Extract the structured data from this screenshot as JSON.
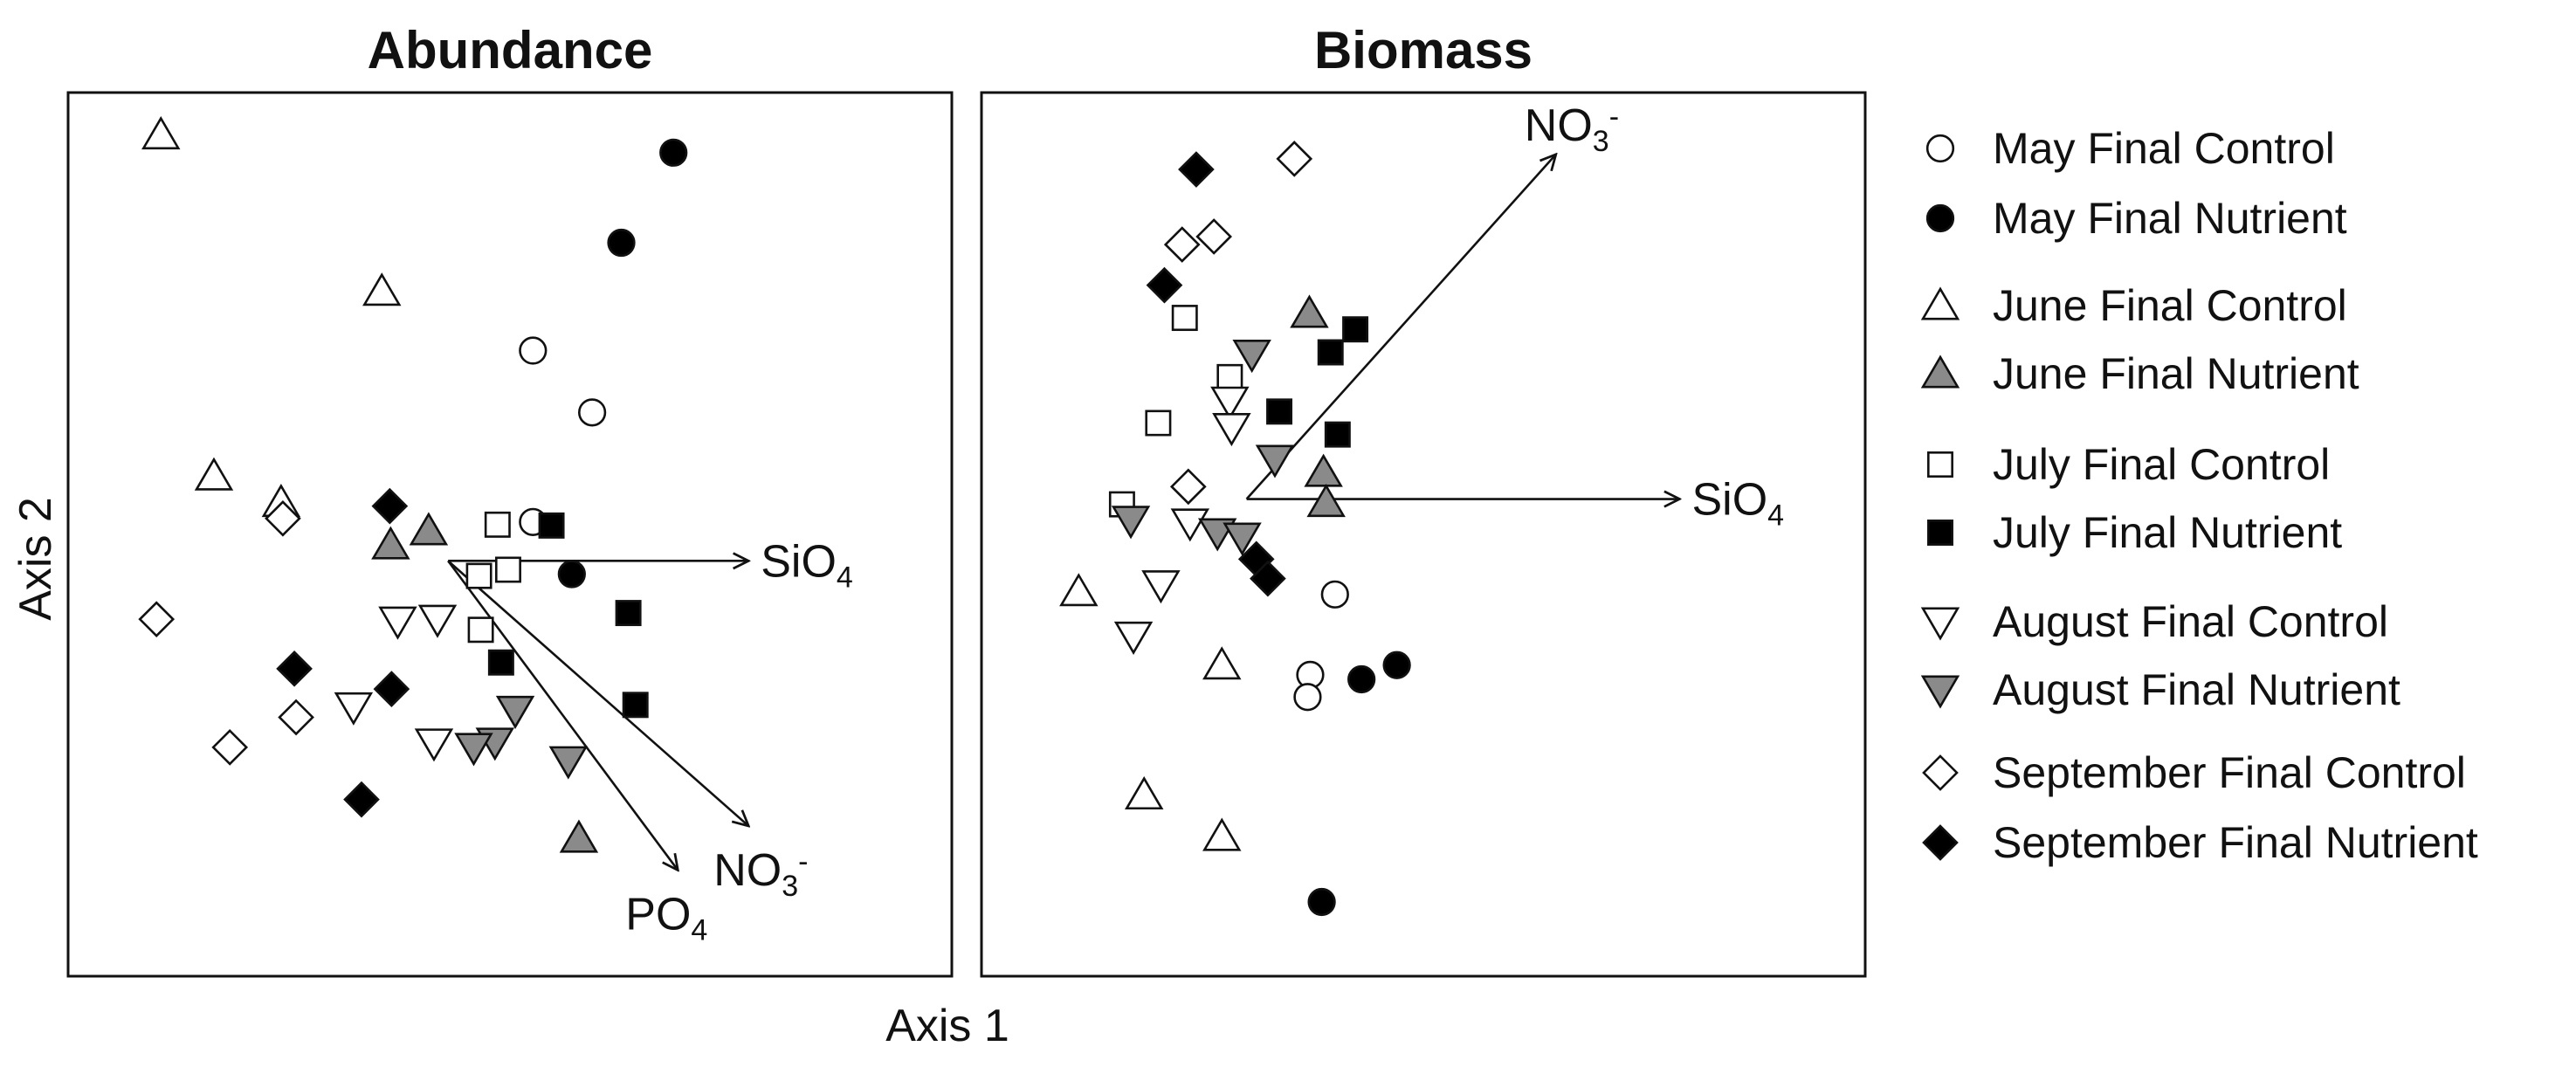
{
  "chart_data": {
    "type": "scatter",
    "xlabel": "Axis 1",
    "ylabel": "Axis 2",
    "legend_position": "right",
    "legend": [
      {
        "label": "May Final Control",
        "marker": "circle",
        "fill": "#ffffff"
      },
      {
        "label": "May Final Nutrient",
        "marker": "circle",
        "fill": "#000000"
      },
      {
        "label": "June Final Control",
        "marker": "triangle-up",
        "fill": "#ffffff"
      },
      {
        "label": "June Final Nutrient",
        "marker": "triangle-up",
        "fill": "#8a8a8a"
      },
      {
        "label": "July Final Control",
        "marker": "square",
        "fill": "#ffffff"
      },
      {
        "label": "July Final Nutrient",
        "marker": "square",
        "fill": "#000000"
      },
      {
        "label": "August Final Control",
        "marker": "triangle-down",
        "fill": "#ffffff"
      },
      {
        "label": "August Final Nutrient",
        "marker": "triangle-down",
        "fill": "#8a8a8a"
      },
      {
        "label": "September Final Control",
        "marker": "diamond",
        "fill": "#ffffff"
      },
      {
        "label": "September Final Nutrient",
        "marker": "diamond",
        "fill": "#000000"
      }
    ],
    "panels": [
      {
        "title": "Abundance",
        "xlim": [
          0,
          100
        ],
        "ylim": [
          0,
          100
        ],
        "origin": [
          43,
          47
        ],
        "vectors": [
          {
            "name": "SiO",
            "sub": "4",
            "sup": "",
            "end": [
              77,
              47
            ],
            "label_pos": "right"
          },
          {
            "name": "NO",
            "sub": "3",
            "sup": "-",
            "end": [
              77,
              17
            ],
            "label_pos": "below-right"
          },
          {
            "name": "PO",
            "sub": "4",
            "sup": "",
            "end": [
              69,
              12
            ],
            "label_pos": "below"
          }
        ],
        "series": [
          {
            "name": "May Final Control",
            "points": [
              [
                52.6,
                70.8
              ],
              [
                59.3,
                63.8
              ],
              [
                52.6,
                51.4
              ]
            ]
          },
          {
            "name": "May Final Nutrient",
            "points": [
              [
                68.5,
                93.2
              ],
              [
                62.6,
                83.0
              ],
              [
                57.0,
                45.5
              ]
            ]
          },
          {
            "name": "June Final Control",
            "points": [
              [
                10.5,
                95.2
              ],
              [
                35.5,
                77.5
              ],
              [
                16.5,
                56.6
              ],
              [
                24.1,
                53.6
              ]
            ]
          },
          {
            "name": "June Final Nutrient",
            "points": [
              [
                36.5,
                48.8
              ],
              [
                40.8,
                50.4
              ],
              [
                57.8,
                15.6
              ]
            ]
          },
          {
            "name": "July Final Control",
            "points": [
              [
                48.6,
                51.1
              ],
              [
                49.8,
                46.0
              ],
              [
                46.5,
                45.3
              ],
              [
                46.7,
                39.2
              ]
            ]
          },
          {
            "name": "July Final Nutrient",
            "points": [
              [
                54.7,
                51.0
              ],
              [
                63.4,
                41.1
              ],
              [
                64.2,
                30.7
              ],
              [
                49.0,
                35.5
              ]
            ]
          },
          {
            "name": "August Final Control",
            "points": [
              [
                37.3,
                40.2
              ],
              [
                41.8,
                40.4
              ],
              [
                32.3,
                30.5
              ],
              [
                41.4,
                26.4
              ]
            ]
          },
          {
            "name": "August Final Nutrient",
            "points": [
              [
                50.6,
                30.1
              ],
              [
                48.3,
                26.5
              ],
              [
                45.9,
                25.9
              ],
              [
                56.6,
                24.4
              ]
            ]
          },
          {
            "name": "September Final Control",
            "points": [
              [
                24.3,
                51.8
              ],
              [
                10.0,
                40.4
              ],
              [
                25.8,
                29.3
              ],
              [
                18.3,
                25.9
              ]
            ]
          },
          {
            "name": "September Final Nutrient",
            "points": [
              [
                36.4,
                53.2
              ],
              [
                25.6,
                34.8
              ],
              [
                36.6,
                32.5
              ],
              [
                33.2,
                20.0
              ]
            ]
          }
        ]
      },
      {
        "title": "Biomass",
        "xlim": [
          0,
          100
        ],
        "ylim": [
          0,
          100
        ],
        "origin": [
          30,
          54
        ],
        "vectors": [
          {
            "name": "NO",
            "sub": "3",
            "sup": "-",
            "end": [
              65,
              93
            ],
            "label_pos": "above"
          },
          {
            "name": "SiO",
            "sub": "4",
            "sup": "",
            "end": [
              79,
              54
            ],
            "label_pos": "right"
          }
        ],
        "series": [
          {
            "name": "May Final Control",
            "points": [
              [
                40.0,
                43.2
              ],
              [
                37.2,
                34.1
              ],
              [
                36.9,
                31.6
              ]
            ]
          },
          {
            "name": "May Final Nutrient",
            "points": [
              [
                43.0,
                33.6
              ],
              [
                47.0,
                35.2
              ],
              [
                38.5,
                8.4
              ]
            ]
          },
          {
            "name": "June Final Control",
            "points": [
              [
                11.0,
                43.5
              ],
              [
                27.2,
                35.2
              ],
              [
                18.4,
                20.5
              ],
              [
                27.2,
                15.8
              ]
            ]
          },
          {
            "name": "June Final Nutrient",
            "points": [
              [
                37.1,
                75.0
              ],
              [
                38.7,
                57.0
              ],
              [
                39.0,
                53.6
              ]
            ]
          },
          {
            "name": "July Final Control",
            "points": [
              [
                23.0,
                74.5
              ],
              [
                28.1,
                67.8
              ],
              [
                20.0,
                62.6
              ],
              [
                15.9,
                53.4
              ]
            ]
          },
          {
            "name": "July Final Nutrient",
            "points": [
              [
                42.3,
                73.2
              ],
              [
                39.5,
                70.6
              ],
              [
                33.7,
                63.9
              ],
              [
                40.3,
                61.3
              ]
            ]
          },
          {
            "name": "August Final Control",
            "points": [
              [
                28.1,
                65.1
              ],
              [
                28.3,
                62.1
              ],
              [
                23.6,
                51.3
              ],
              [
                20.3,
                44.3
              ],
              [
                17.2,
                38.5
              ]
            ]
          },
          {
            "name": "August Final Nutrient",
            "points": [
              [
                30.6,
                70.4
              ],
              [
                33.2,
                58.5
              ],
              [
                16.9,
                51.6
              ],
              [
                26.7,
                50.2
              ],
              [
                29.5,
                49.7
              ]
            ]
          },
          {
            "name": "September Final Control",
            "points": [
              [
                35.4,
                92.5
              ],
              [
                22.7,
                82.8
              ],
              [
                26.3,
                83.7
              ],
              [
                23.4,
                55.4
              ]
            ]
          },
          {
            "name": "September Final Nutrient",
            "points": [
              [
                24.3,
                91.3
              ],
              [
                20.7,
                78.2
              ],
              [
                31.1,
                47.2
              ],
              [
                32.4,
                45.0
              ]
            ]
          }
        ]
      }
    ]
  }
}
